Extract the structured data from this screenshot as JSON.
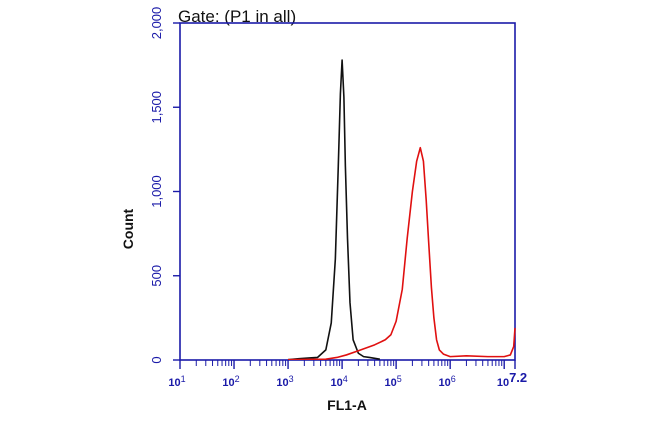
{
  "chart_data": {
    "type": "line",
    "title": "Gate: (P1 in all)",
    "xlabel": "FL1-A",
    "ylabel": "Count",
    "x_scale": "log",
    "xlim": [
      10,
      15848932
    ],
    "ylim": [
      0,
      2000
    ],
    "y_ticks": [
      {
        "value": 0,
        "label": "0"
      },
      {
        "value": 500,
        "label": "500"
      },
      {
        "value": 1000,
        "label": "1,000"
      },
      {
        "value": 1500,
        "label": "1,500"
      },
      {
        "value": 2000,
        "label": "2,000"
      }
    ],
    "x_ticks": [
      {
        "value": 10,
        "base": "10",
        "exp": "1"
      },
      {
        "value": 100,
        "base": "10",
        "exp": "2"
      },
      {
        "value": 1000,
        "base": "10",
        "exp": "3"
      },
      {
        "value": 10000,
        "base": "10",
        "exp": "4"
      },
      {
        "value": 100000,
        "base": "10",
        "exp": "5"
      },
      {
        "value": 1000000,
        "base": "10",
        "exp": "6"
      },
      {
        "value": 15848932,
        "base": "10",
        "exp": "7.2"
      }
    ],
    "grid": false,
    "legend": "none",
    "series": [
      {
        "color": "#111111",
        "x": [
          1000,
          1600,
          2500,
          3500,
          5000,
          6300,
          7500,
          8500,
          9300,
          10000,
          10800,
          11500,
          12600,
          14000,
          16000,
          20000,
          25000,
          32000,
          40000,
          50000
        ],
        "y": [
          2,
          8,
          12,
          15,
          60,
          220,
          600,
          1150,
          1580,
          1780,
          1560,
          1150,
          720,
          340,
          120,
          40,
          20,
          15,
          10,
          5
        ]
      },
      {
        "color": "#e01010",
        "x": [
          1000,
          5000,
          8000,
          12000,
          20000,
          40000,
          63000,
          80000,
          100000,
          130000,
          160000,
          200000,
          240000,
          280000,
          320000,
          360000,
          400000,
          450000,
          500000,
          560000,
          630000,
          750000,
          1000000,
          2000000,
          5000000,
          10000000,
          13000000,
          15000000,
          15848932
        ],
        "y": [
          2,
          5,
          15,
          30,
          55,
          90,
          120,
          150,
          230,
          420,
          720,
          1000,
          1180,
          1260,
          1180,
          950,
          700,
          430,
          250,
          120,
          60,
          35,
          20,
          25,
          20,
          20,
          30,
          80,
          190
        ]
      }
    ]
  }
}
